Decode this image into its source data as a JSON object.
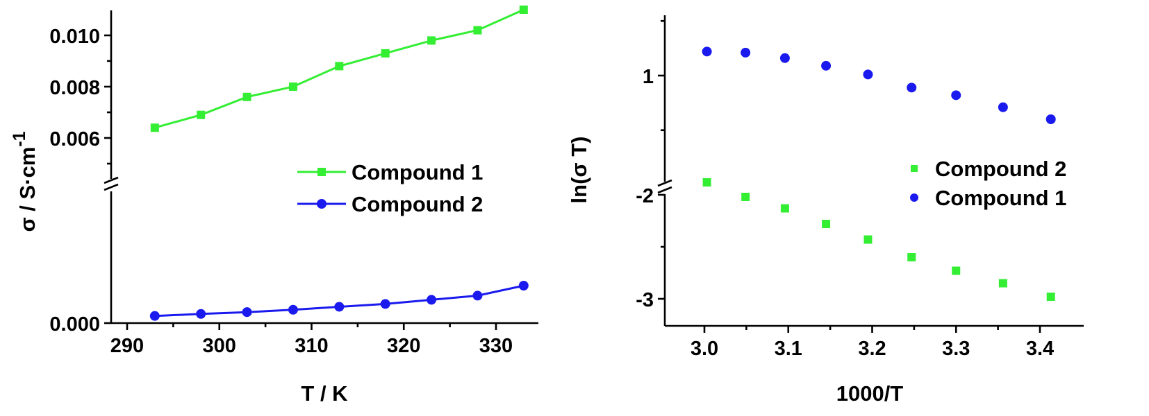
{
  "colors": {
    "green": "#33ee33",
    "blue": "#1a1aee"
  },
  "chart_data": [
    {
      "type": "line",
      "xlabel": "T / K",
      "ylabel": "σ / S·cm",
      "ylabel_sup": "-1",
      "xlim": [
        290,
        335
      ],
      "xticks": [
        "290",
        "300",
        "310",
        "320",
        "330"
      ],
      "yticks_upper": [
        "0.006",
        "0.008",
        "0.010"
      ],
      "yticks_lower": [
        "0.000"
      ],
      "y_axis_break": true,
      "legend_position": "middle-right",
      "x": [
        293,
        298,
        303,
        308,
        313,
        318,
        323,
        328,
        333
      ],
      "series": [
        {
          "name": "Compound 1",
          "marker": "square",
          "color": "green",
          "values": [
            0.0064,
            0.0069,
            0.0076,
            0.008,
            0.0088,
            0.0093,
            0.0098,
            0.0102,
            0.011
          ]
        },
        {
          "name": "Compound 2",
          "marker": "circle",
          "color": "blue",
          "values": [
            0.00043,
            0.00055,
            0.00066,
            0.0008,
            0.00098,
            0.00115,
            0.0014,
            0.00165,
            0.00225
          ]
        }
      ]
    },
    {
      "type": "scatter",
      "xlabel": "1000/T",
      "ylabel": "ln(σ T)",
      "xlim": [
        2.955,
        3.455
      ],
      "xticks": [
        "3.0",
        "3.1",
        "3.2",
        "3.3",
        "3.4"
      ],
      "yticks_upper": [
        "1"
      ],
      "yticks_lower": [
        "-2",
        "-3"
      ],
      "y_axis_break": true,
      "legend_position": "middle-right",
      "x": [
        3.003,
        3.049,
        3.096,
        3.145,
        3.195,
        3.247,
        3.3,
        3.356,
        3.413
      ],
      "series": [
        {
          "name": "Compound 2",
          "marker": "square",
          "color": "green",
          "values": [
            -1.88,
            -2.02,
            -2.13,
            -2.28,
            -2.43,
            -2.6,
            -2.73,
            -2.85,
            -2.98
          ]
        },
        {
          "name": "Compound 1",
          "marker": "circle",
          "color": "blue",
          "values": [
            1.22,
            1.21,
            1.16,
            1.09,
            1.01,
            0.89,
            0.82,
            0.71,
            0.6
          ]
        }
      ]
    }
  ]
}
